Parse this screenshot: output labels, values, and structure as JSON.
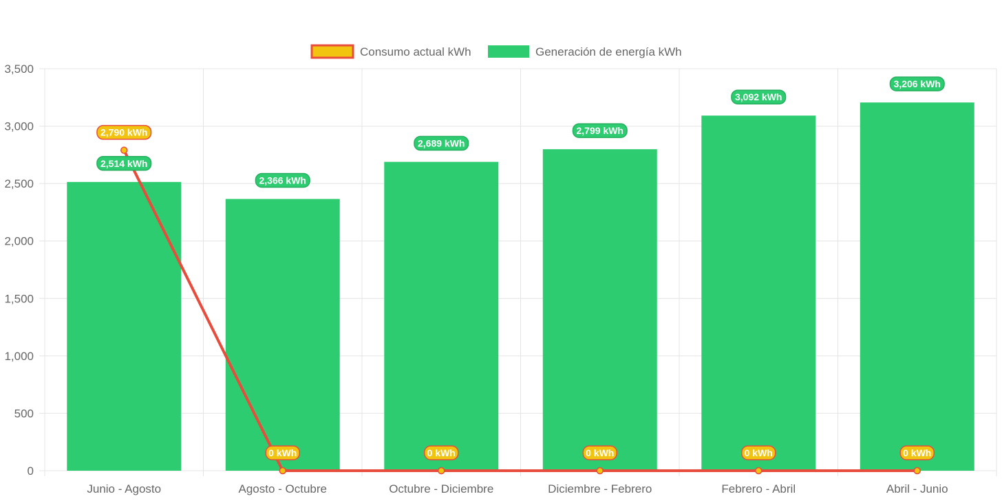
{
  "chart_data": {
    "type": "bar",
    "categories": [
      "Junio - Agosto",
      "Agosto - Octubre",
      "Octubre - Diciembre",
      "Diciembre - Febrero",
      "Febrero - Abril",
      "Abril - Junio"
    ],
    "series": [
      {
        "name": "Consumo actual kWh",
        "type": "line",
        "values": [
          2790,
          0,
          0,
          0,
          0,
          0
        ],
        "labels": [
          "2,790 kWh",
          "0 kWh",
          "0 kWh",
          "0 kWh",
          "0 kWh",
          "0 kWh"
        ],
        "color": "#e74c3c",
        "fill": "#f1c40f"
      },
      {
        "name": "Generación de energía kWh",
        "type": "bar",
        "values": [
          2514,
          2366,
          2689,
          2799,
          3092,
          3206
        ],
        "labels": [
          "2,514 kWh",
          "2,366 kWh",
          "2,689 kWh",
          "2,799 kWh",
          "3,092 kWh",
          "3,206 kWh"
        ],
        "color": "#2ecc71"
      }
    ],
    "ylim": [
      0,
      3500
    ],
    "yticks": [
      0,
      500,
      1000,
      1500,
      2000,
      2500,
      3000,
      3500
    ],
    "ytick_labels": [
      "0",
      "500",
      "1,000",
      "1,500",
      "2,000",
      "2,500",
      "3,000",
      "3,500"
    ],
    "grid": true,
    "legend": "top-center",
    "title": "",
    "xlabel": "",
    "ylabel": ""
  }
}
